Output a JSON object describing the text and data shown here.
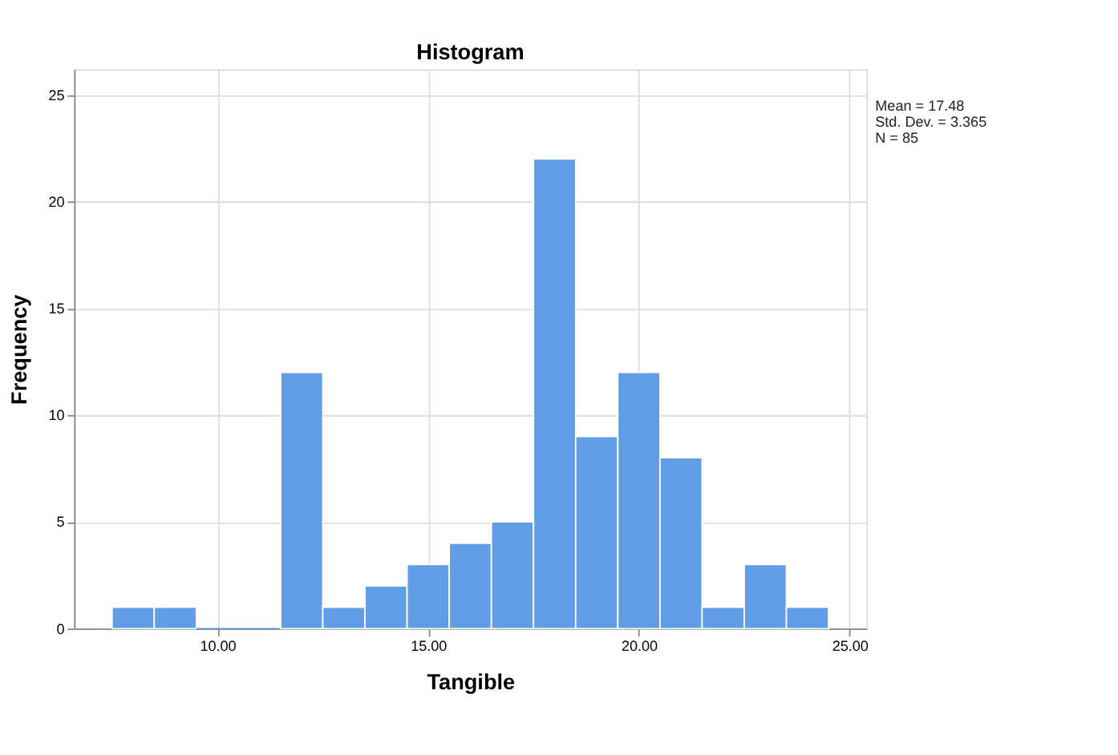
{
  "chart_data": {
    "type": "histogram",
    "title": "Histogram",
    "xlabel": "Tangible",
    "ylabel": "Frequency",
    "bins": [
      7.5,
      8.5,
      9.5,
      10.5,
      11.5,
      12.5,
      13.5,
      14.5,
      15.5,
      16.5,
      17.5,
      18.5,
      19.5,
      20.5,
      21.5,
      22.5,
      23.5,
      24.5
    ],
    "values": [
      1,
      1,
      0,
      0,
      12,
      1,
      2,
      3,
      4,
      5,
      22,
      9,
      12,
      8,
      1,
      3,
      1
    ],
    "color": "#5f9de6",
    "xlim": [
      6.6,
      25.4
    ],
    "xticks": [
      {
        "value": 10,
        "label": "10.00"
      },
      {
        "value": 15,
        "label": "15.00"
      },
      {
        "value": 20,
        "label": "20.00"
      },
      {
        "value": 25,
        "label": "25.00"
      }
    ],
    "ylim": [
      0,
      26.2
    ],
    "yticks": [
      0,
      5,
      10,
      15,
      20,
      25
    ],
    "grid": true,
    "annotations": [
      "Mean = 17.48",
      "Std. Dev. = 3.365",
      "N = 85"
    ]
  }
}
